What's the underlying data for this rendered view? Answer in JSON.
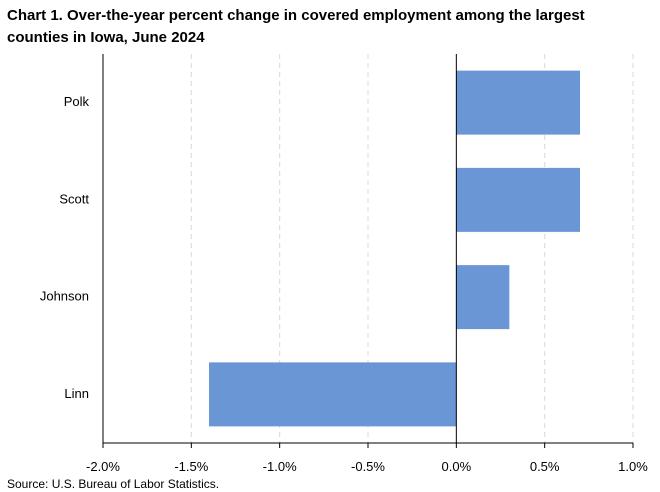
{
  "title": "Chart 1. Over-the-year percent change in covered employment among the largest counties in Iowa, June 2024",
  "source": "Source: U.S. Bureau of Labor Statistics.",
  "chart_data": {
    "type": "bar",
    "orientation": "horizontal",
    "title": "Chart 1. Over-the-year percent change in covered employment among the largest counties in Iowa, June 2024",
    "categories": [
      "Polk",
      "Scott",
      "Johnson",
      "Linn"
    ],
    "values": [
      0.7,
      0.7,
      0.3,
      -1.4
    ],
    "xlim": [
      -2.0,
      1.0
    ],
    "x_ticks": [
      -2.0,
      -1.5,
      -1.0,
      -0.5,
      0.0,
      0.5,
      1.0
    ],
    "x_tick_labels": [
      "-2.0%",
      "-1.5%",
      "-1.0%",
      "-0.5%",
      "0.0%",
      "0.5%",
      "1.0%"
    ],
    "grid": "vertical dashed",
    "bar_color": "#6a96d6",
    "grid_color": "#d9d9d9",
    "axis_color": "#000000"
  }
}
